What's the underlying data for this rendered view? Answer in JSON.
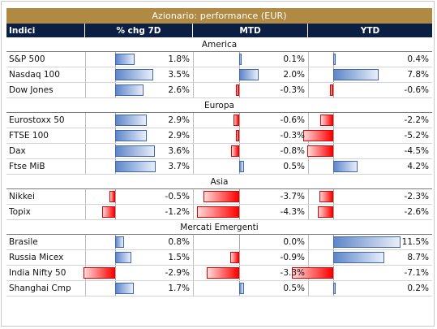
{
  "title": "Azionario: performance (EUR)",
  "headers": [
    "Indici",
    "% chg 7D",
    "MTD",
    "YTD"
  ],
  "colors": {
    "title_bg": "#b08a43",
    "header_bg": "#0b1f44",
    "positive_bar": "#5e86c9",
    "negative_bar": "#ff0000"
  },
  "sections": [
    {
      "name": "America",
      "rows": [
        {
          "name": "S&P 500",
          "v": [
            1.8,
            0.1,
            0.4
          ]
        },
        {
          "name": "Nasdaq 100",
          "v": [
            3.5,
            2.0,
            7.8
          ]
        },
        {
          "name": "Dow Jones",
          "v": [
            2.6,
            -0.3,
            -0.6
          ]
        }
      ]
    },
    {
      "name": "Europa",
      "rows": [
        {
          "name": "Eurostoxx 50",
          "v": [
            2.9,
            -0.6,
            -2.2
          ]
        },
        {
          "name": "FTSE 100",
          "v": [
            2.9,
            -0.3,
            -5.2
          ]
        },
        {
          "name": "Dax",
          "v": [
            3.6,
            -0.8,
            -4.5
          ]
        },
        {
          "name": "Ftse MiB",
          "v": [
            3.7,
            0.5,
            4.2
          ]
        }
      ]
    },
    {
      "name": "Asia",
      "rows": [
        {
          "name": "Nikkei",
          "v": [
            -0.5,
            -3.7,
            -2.3
          ]
        },
        {
          "name": "Topix",
          "v": [
            -1.2,
            -4.3,
            -2.6
          ]
        }
      ]
    },
    {
      "name": "Mercati Emergenti",
      "rows": [
        {
          "name": "Brasile",
          "v": [
            0.8,
            0.0,
            11.5
          ]
        },
        {
          "name": "Russia Micex",
          "v": [
            1.5,
            -0.9,
            8.7
          ]
        },
        {
          "name": "India Nifty 50",
          "v": [
            -2.9,
            -3.3,
            -7.1
          ]
        },
        {
          "name": "Shanghai Cmp",
          "v": [
            1.7,
            0.5,
            0.2
          ]
        }
      ]
    }
  ]
}
